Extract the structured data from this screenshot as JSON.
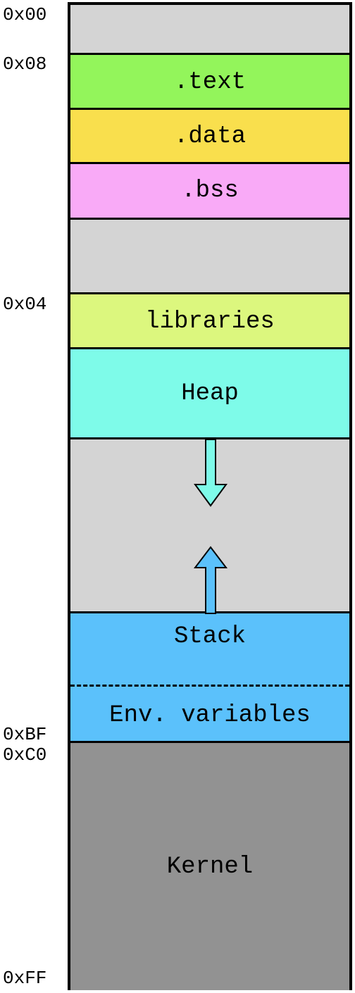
{
  "addresses": {
    "a0": "0x00",
    "a1": "0x08",
    "a2": "0x04",
    "a3": "0xBF",
    "a4": "0xC0",
    "a5": "0xFF"
  },
  "segments": {
    "text": ".text",
    "data": ".data",
    "bss": ".bss",
    "libraries": "libraries",
    "heap": "Heap",
    "stack": "Stack",
    "env": "Env. variables",
    "kernel": "Kernel"
  },
  "colors": {
    "unused": "#d4d4d4",
    "text": "#93f55b",
    "data": "#f9df4d",
    "bss": "#f9aaf7",
    "libraries": "#dcf77e",
    "heap": "#7efbe9",
    "stack": "#5bc1fb",
    "kernel": "#929292"
  },
  "arrows": {
    "heap_grows": "heap-down",
    "stack_grows": "stack-up"
  }
}
